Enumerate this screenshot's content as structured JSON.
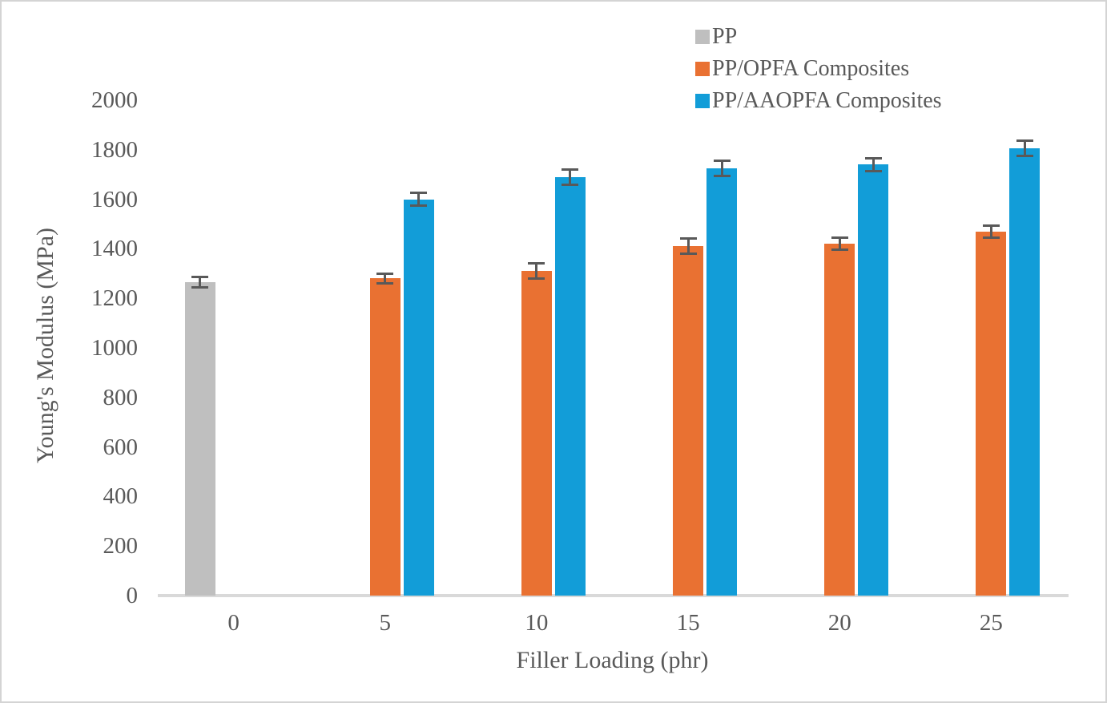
{
  "chart_data": {
    "type": "bar",
    "title": "",
    "xlabel": "Filler Loading (phr)",
    "ylabel": "Young's Modulus (MPa)",
    "categories": [
      "0",
      "5",
      "10",
      "15",
      "20",
      "25"
    ],
    "series": [
      {
        "name": "PP",
        "color": "#BFBFBF",
        "values": [
          1265,
          null,
          null,
          null,
          null,
          null
        ],
        "errors": [
          25,
          null,
          null,
          null,
          null,
          null
        ]
      },
      {
        "name": "PP/OPFA Composites",
        "color": "#E97132",
        "values": [
          null,
          1280,
          1310,
          1410,
          1420,
          1470
        ],
        "errors": [
          null,
          25,
          35,
          35,
          30,
          30
        ]
      },
      {
        "name": "PP/AAOPFA Composites",
        "color": "#129DD8",
        "values": [
          null,
          1600,
          1690,
          1725,
          1740,
          1805
        ],
        "errors": [
          null,
          30,
          35,
          35,
          30,
          35
        ]
      }
    ],
    "ylim": [
      0,
      2000
    ],
    "ytick_step": 200,
    "grid": false,
    "legend_position": "top-right",
    "error_bar_color": "#595959",
    "axis_line_color": "#D9D9D9",
    "text_color": "#595959",
    "background_color": "#FFFFFF"
  }
}
